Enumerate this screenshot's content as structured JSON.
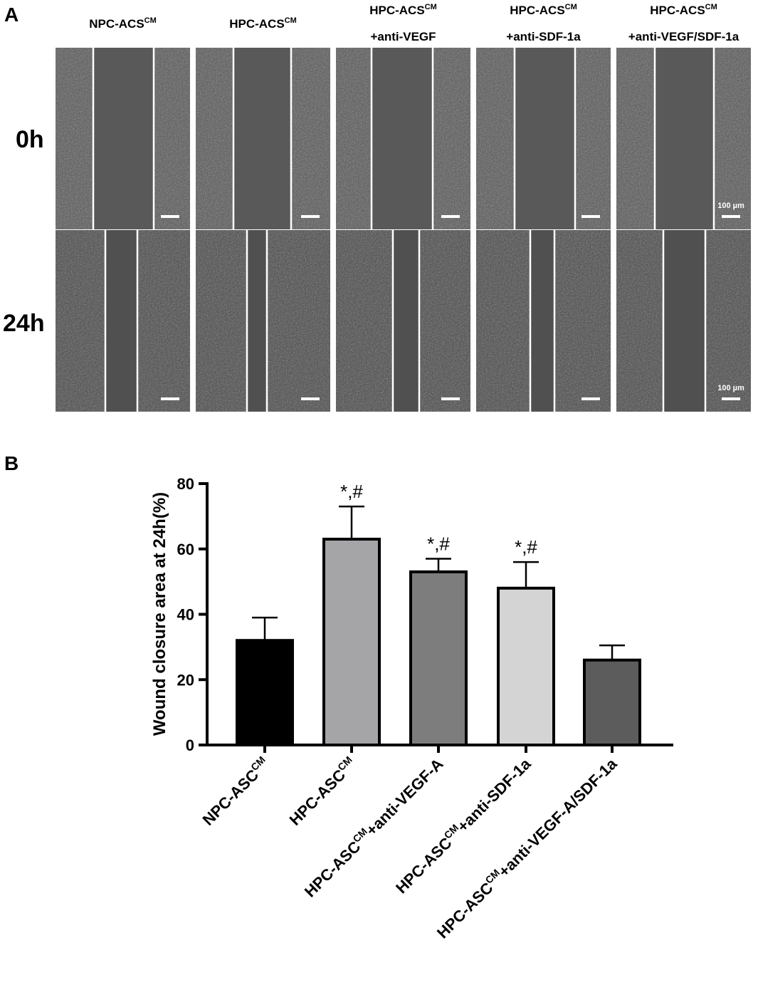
{
  "panel_a": {
    "label": "A",
    "row_labels": [
      "0h",
      "24h"
    ],
    "columns": [
      {
        "line1": "NPC-ACS",
        "sup1": "CM",
        "line2": ""
      },
      {
        "line1": "HPC-ACS",
        "sup1": "CM",
        "line2": ""
      },
      {
        "line1": "HPC-ACS",
        "sup1": "CM",
        "line2": "+anti-VEGF"
      },
      {
        "line1": "HPC-ACS",
        "sup1": "CM",
        "line2": "+anti-SDF-1a"
      },
      {
        "line1": "HPC-ACS",
        "sup1": "CM",
        "line2": "+anti-VEGF/SDF-1a"
      }
    ],
    "scale_bar_label": "100 µm"
  },
  "panel_b": {
    "label": "B"
  },
  "chart_data": {
    "type": "bar",
    "title": "",
    "ylabel": "Wound closure area at 24h(%)",
    "xlabel": "",
    "ylim": [
      0,
      80
    ],
    "yticks": [
      0,
      20,
      40,
      60,
      80
    ],
    "categories": [
      {
        "base": "NPC-ASC",
        "sup": "CM",
        "suffix": ""
      },
      {
        "base": "HPC-ASC",
        "sup": "CM",
        "suffix": ""
      },
      {
        "base": "HPC-ASC",
        "sup": "CM",
        "suffix": "+anti-VEGF-A"
      },
      {
        "base": "HPC-ASC",
        "sup": "CM",
        "suffix": "+anti-SDF-1a"
      },
      {
        "base": "HPC-ASC",
        "sup": "CM",
        "suffix": "+anti-VEGF-A/SDF-1a"
      }
    ],
    "values": [
      32,
      63,
      53,
      48,
      26
    ],
    "errors": [
      7,
      10,
      4,
      8,
      4.5
    ],
    "annotations": [
      "",
      "*,#",
      "*,#",
      "*,#",
      ""
    ],
    "bar_colors": [
      "#000000",
      "#a5a5a8",
      "#7d7d7d",
      "#d4d4d4",
      "#5c5c5c"
    ],
    "legend": "none",
    "grid": false
  }
}
